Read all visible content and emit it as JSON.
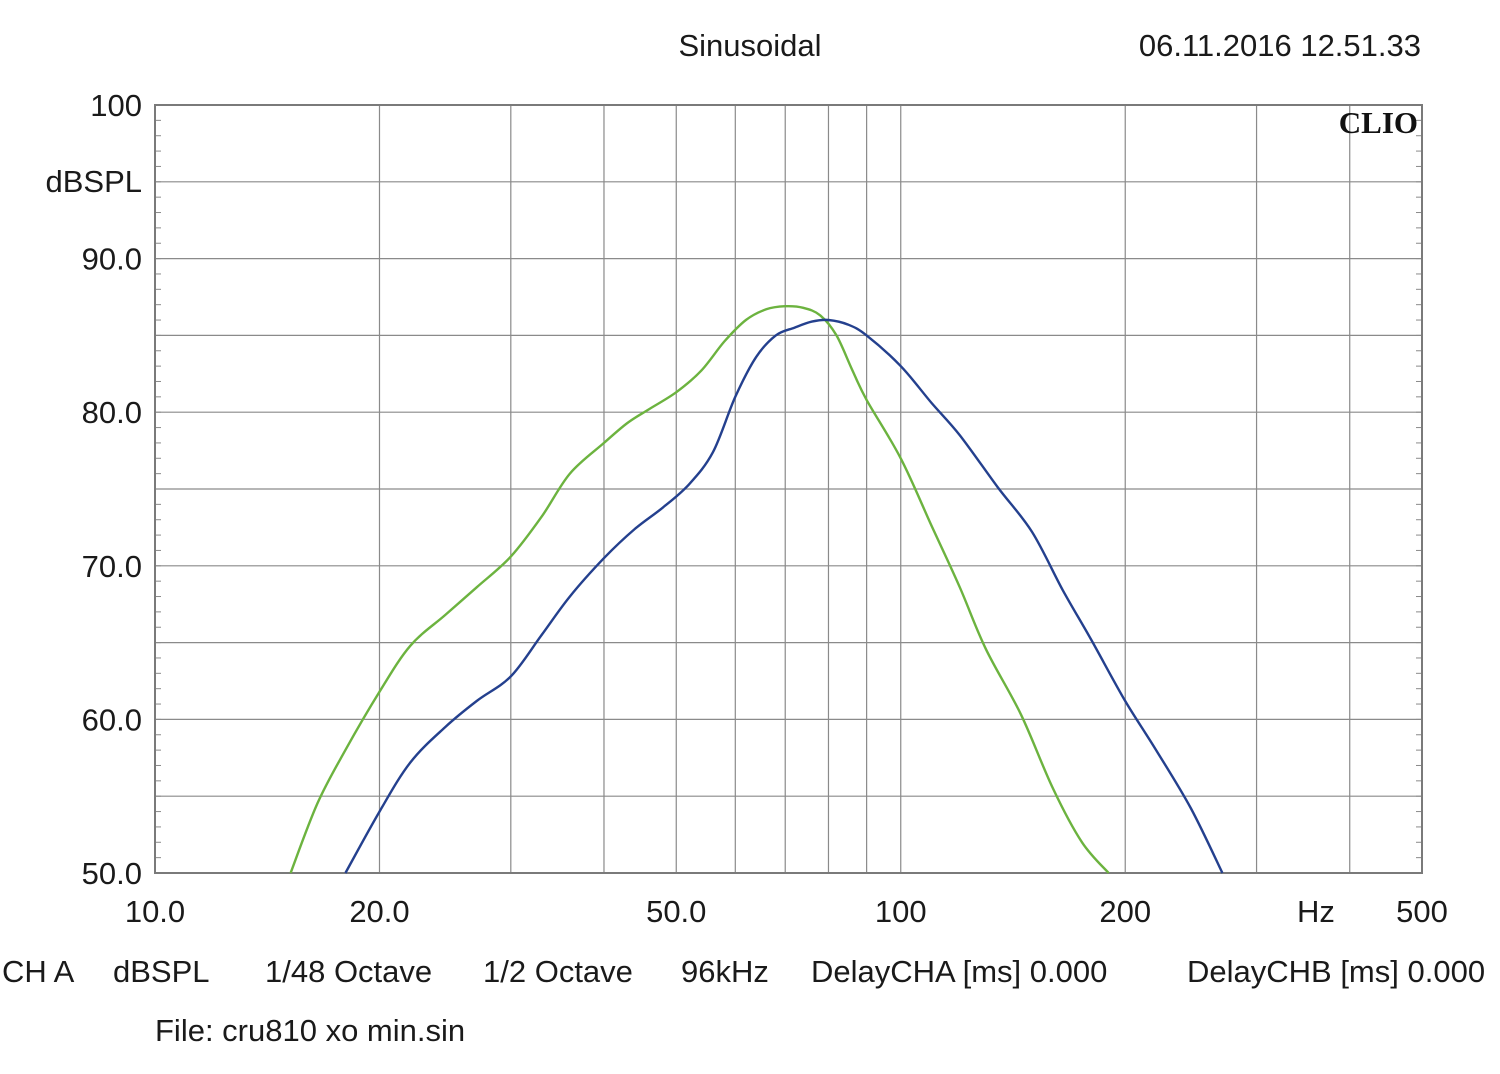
{
  "header": {
    "mode": "Sinusoidal",
    "timestamp": "06.11.2016 12.51.33",
    "brand": "CLIO"
  },
  "chart_data": {
    "type": "line",
    "title": "",
    "xlabel": "Hz",
    "ylabel": "dBSPL",
    "xscale": "log",
    "xlim": [
      10,
      500
    ],
    "ylim": [
      50,
      100
    ],
    "x_tick_labels": [
      "10.0",
      "20.0",
      "50.0",
      "100",
      "200",
      "500"
    ],
    "x_tick_values": [
      10,
      20,
      50,
      100,
      200,
      500
    ],
    "y_tick_labels": [
      "50.0",
      "60.0",
      "70.0",
      "80.0",
      "90.0",
      "100"
    ],
    "y_tick_values": [
      50,
      60,
      70,
      80,
      90,
      100
    ],
    "grid": true,
    "series": [
      {
        "color": "#6cb33f",
        "x": [
          15.2,
          16.5,
          18.0,
          20.0,
          22.0,
          24.5,
          27.0,
          30.0,
          33.0,
          36.0,
          40.0,
          43.0,
          46.0,
          50.0,
          54.0,
          58.0,
          62.0,
          66.0,
          70.0,
          74.0,
          78.0,
          82.0,
          86.0,
          90.0,
          100.0,
          110.0,
          120.0,
          130.0,
          145.0,
          160.0,
          175.0,
          190.0
        ],
        "y": [
          50.0,
          54.5,
          58.0,
          61.8,
          64.8,
          66.8,
          68.6,
          70.6,
          73.2,
          76.0,
          78.0,
          79.3,
          80.2,
          81.3,
          82.7,
          84.6,
          86.0,
          86.7,
          86.9,
          86.8,
          86.3,
          85.0,
          82.8,
          80.8,
          77.0,
          72.6,
          68.6,
          64.6,
          60.3,
          55.5,
          52.0,
          50.0
        ]
      },
      {
        "color": "#24408e",
        "x": [
          18.0,
          20.0,
          22.0,
          24.5,
          27.0,
          30.0,
          33.0,
          36.0,
          40.0,
          44.0,
          48.0,
          52.0,
          56.0,
          60.0,
          64.0,
          68.0,
          72.0,
          76.0,
          80.0,
          85.0,
          90.0,
          100.0,
          110.0,
          120.0,
          135.0,
          150.0,
          165.0,
          180.0,
          200.0,
          220.0,
          245.0,
          270.0
        ],
        "y": [
          50.0,
          54.0,
          57.2,
          59.5,
          61.2,
          62.8,
          65.5,
          68.0,
          70.5,
          72.4,
          73.8,
          75.3,
          77.4,
          81.0,
          83.6,
          85.0,
          85.5,
          85.9,
          86.0,
          85.7,
          85.0,
          83.0,
          80.6,
          78.5,
          75.1,
          72.2,
          68.4,
          65.2,
          61.2,
          58.0,
          54.2,
          50.0
        ]
      }
    ]
  },
  "footer": {
    "channel": "CH A",
    "unit": "dBSPL",
    "smoothing": "1/48 Octave",
    "resolution": "1/2 Octave",
    "sample_rate": "96kHz",
    "delay_cha": "DelayCHA [ms] 0.000",
    "delay_chb": "DelayCHB [ms] 0.000",
    "file": "File: cru810 xo min.sin"
  },
  "colors": {
    "grid": "#8a8a8a",
    "frame": "#7a7a7a",
    "text": "#1a1a1a"
  }
}
